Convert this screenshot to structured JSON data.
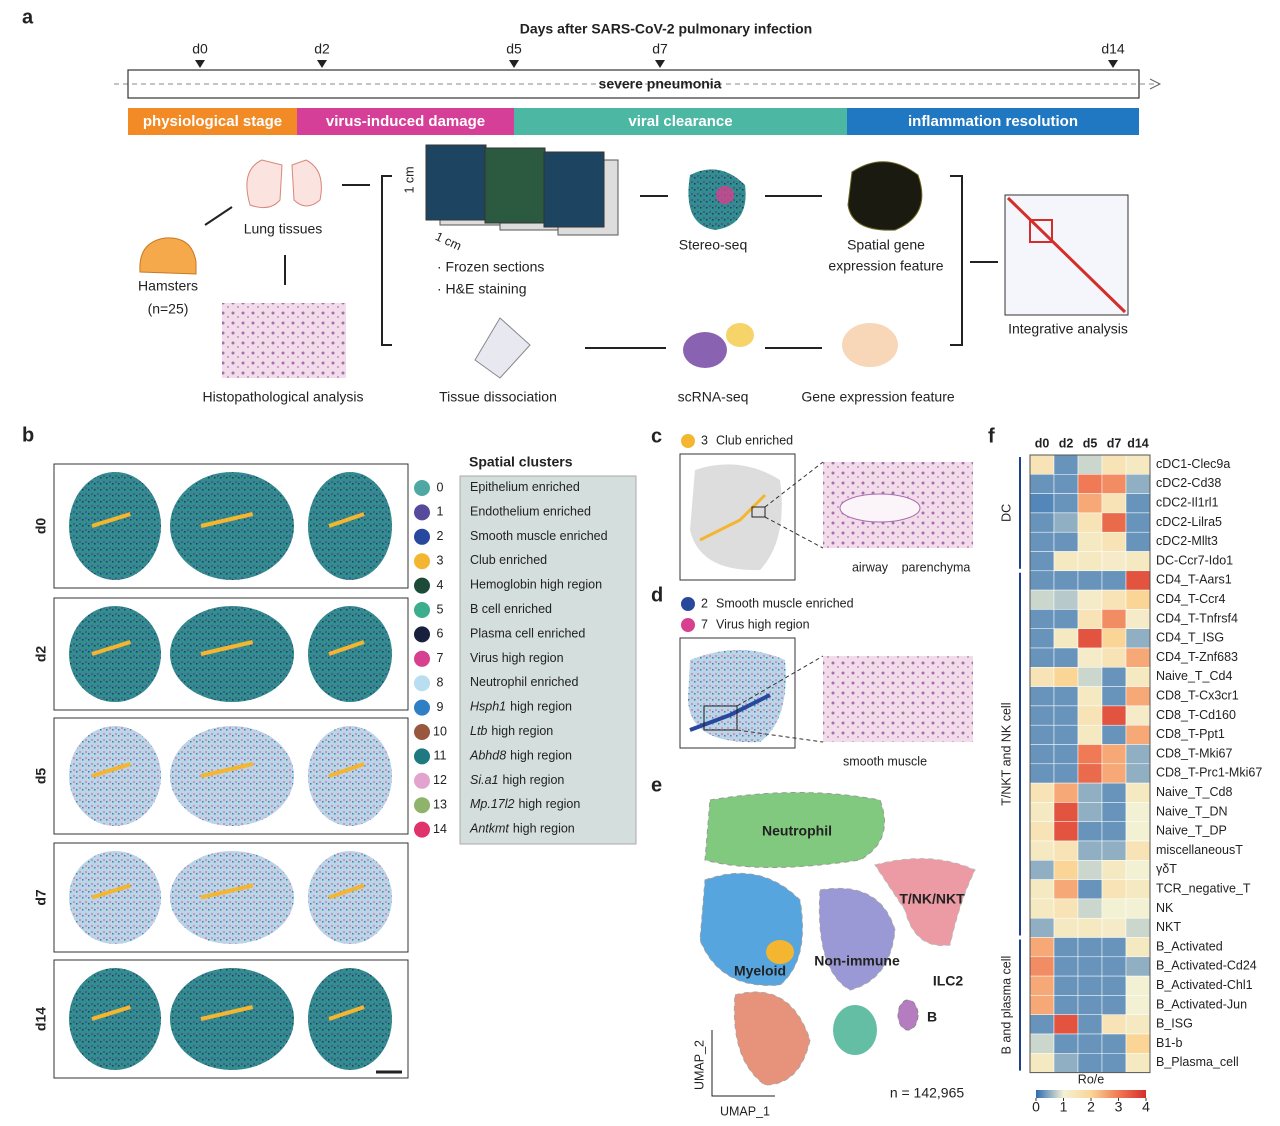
{
  "panels": [
    "a",
    "b",
    "c",
    "d",
    "e",
    "f"
  ],
  "timeline": {
    "title": "Days after SARS-CoV-2 pulmonary infection",
    "days": [
      "d0",
      "d2",
      "d5",
      "d7",
      "d14"
    ],
    "bar_label": "severe pneumonia",
    "stages": [
      {
        "label": "physiological stage",
        "color": "#f28a26"
      },
      {
        "label": "virus-induced damage",
        "color": "#d63f97"
      },
      {
        "label": "viral clearance",
        "color": "#4cb8a4"
      },
      {
        "label": "inflammation resolution",
        "color": "#1f78c1"
      }
    ]
  },
  "workflow": {
    "hamsters": "Hamsters",
    "hamster_n": "(n=25)",
    "lung": "Lung tissues",
    "histo": "Histopathological analysis",
    "scale_v": "1 cm",
    "scale_h": "1 cm",
    "frozen": "· Frozen sections",
    "he": "· H&E staining",
    "dissociation": "Tissue dissociation",
    "stereo": "Stereo-seq",
    "spatial_feature": [
      "Spatial gene",
      "expression feature"
    ],
    "scrna": "scRNA-seq",
    "gene_feature": "Gene expression feature",
    "integrative": "Integrative analysis"
  },
  "spatial": {
    "rows": [
      "d0",
      "d2",
      "d5",
      "d7",
      "d14"
    ],
    "legend_title": "Spatial clusters",
    "clusters": [
      {
        "id": "0",
        "label": "Epithelium enriched",
        "color": "#4fa9a2"
      },
      {
        "id": "1",
        "label": "Endothelium enriched",
        "color": "#574a9c"
      },
      {
        "id": "2",
        "label": "Smooth muscle enriched",
        "color": "#27489c"
      },
      {
        "id": "3",
        "label": "Club enriched",
        "color": "#f4b531"
      },
      {
        "id": "4",
        "label": "Hemoglobin high region",
        "color": "#1e4a38"
      },
      {
        "id": "5",
        "label": "B cell enriched",
        "color": "#3cae8d"
      },
      {
        "id": "6",
        "label": "Plasma cell enriched",
        "color": "#17213d"
      },
      {
        "id": "7",
        "label": "Virus high region",
        "color": "#d6408e"
      },
      {
        "id": "8",
        "label": "Neutrophil enriched",
        "color": "#b8def0"
      },
      {
        "id": "9",
        "gene": "Hsph1",
        "label": "high region",
        "color": "#2e7fc4"
      },
      {
        "id": "10",
        "gene": "Ltb",
        "label": "high region",
        "color": "#99573e"
      },
      {
        "id": "11",
        "gene": "Abhd8",
        "label": "high region",
        "color": "#1e7a80"
      },
      {
        "id": "12",
        "gene": "Si.a1",
        "label": "high region",
        "color": "#e3a3cf"
      },
      {
        "id": "13",
        "gene": "Mp.17l2",
        "label": "high region",
        "color": "#8db46a"
      },
      {
        "id": "14",
        "gene": "Antkmt",
        "label": "high region",
        "color": "#e0336b"
      }
    ]
  },
  "panel_c": {
    "legend": {
      "id": "3",
      "label": "Club enriched",
      "color": "#f4b531"
    },
    "labels": [
      "airway",
      "parenchyma"
    ]
  },
  "panel_d": {
    "legend": [
      {
        "id": "2",
        "label": "Smooth muscle enriched",
        "color": "#27489c"
      },
      {
        "id": "7",
        "label": "Virus high region",
        "color": "#d6408e"
      }
    ],
    "labels": [
      "smooth muscle"
    ]
  },
  "umap": {
    "clusters": [
      "Neutrophil",
      "T/NK/NKT",
      "Myeloid",
      "Non-immune",
      "ILC2",
      "B"
    ],
    "x_label": "UMAP_1",
    "y_label": "UMAP_2",
    "n": "n = 142,965"
  },
  "heatmap": {
    "columns": [
      "d0",
      "d2",
      "d5",
      "d7",
      "d14"
    ],
    "groups": [
      {
        "label": "DC",
        "rows": [
          {
            "name": "cDC1-Clec9a",
            "values": [
              1.5,
              0.3,
              0.8,
              1.5,
              1.3
            ]
          },
          {
            "name": "cDC2-Cd38",
            "values": [
              0.3,
              0.3,
              3.0,
              2.8,
              0.5
            ]
          },
          {
            "name": "cDC2-Il1rl1",
            "values": [
              0.2,
              0.3,
              2.5,
              1.5,
              0.3
            ]
          },
          {
            "name": "cDC2-Lilra5",
            "values": [
              0.3,
              0.5,
              1.5,
              3.2,
              0.3
            ]
          },
          {
            "name": "cDC2-Mllt3",
            "values": [
              0.3,
              0.3,
              1.3,
              1.5,
              0.3
            ]
          },
          {
            "name": "DC-Ccr7-Ido1",
            "values": [
              0.3,
              1.3,
              1.3,
              1.2,
              1.3
            ]
          }
        ]
      },
      {
        "label": "T/NKT and NK cell",
        "rows": [
          {
            "name": "CD4_T-Aars1",
            "values": [
              0.3,
              0.3,
              0.3,
              0.3,
              3.5
            ]
          },
          {
            "name": "CD4_T-Ccr4",
            "values": [
              0.8,
              0.7,
              1.2,
              1.5,
              2.0
            ]
          },
          {
            "name": "CD4_T-Tnfrsf4",
            "values": [
              0.3,
              0.3,
              1.5,
              2.8,
              1.2
            ]
          },
          {
            "name": "CD4_T_ISG",
            "values": [
              0.3,
              1.3,
              3.5,
              2.0,
              0.5
            ]
          },
          {
            "name": "CD4_T-Znf683",
            "values": [
              0.3,
              0.3,
              1.2,
              1.5,
              2.5
            ]
          },
          {
            "name": "Naive_T_Cd4",
            "values": [
              1.5,
              2.0,
              0.8,
              0.3,
              1.3
            ]
          },
          {
            "name": "CD8_T-Cx3cr1",
            "values": [
              0.3,
              0.3,
              1.3,
              0.3,
              2.5
            ]
          },
          {
            "name": "CD8_T-Cd160",
            "values": [
              0.3,
              0.3,
              1.5,
              3.5,
              1.2
            ]
          },
          {
            "name": "CD8_T-Ppt1",
            "values": [
              0.3,
              0.3,
              1.3,
              0.3,
              2.5
            ]
          },
          {
            "name": "CD8_T-Mki67",
            "values": [
              0.3,
              0.3,
              3.0,
              2.5,
              0.5
            ]
          },
          {
            "name": "CD8_T-Prc1-Mki67",
            "values": [
              0.3,
              0.3,
              3.2,
              2.5,
              0.5
            ]
          },
          {
            "name": "Naive_T_Cd8",
            "values": [
              1.5,
              2.5,
              0.5,
              0.3,
              1.3
            ]
          },
          {
            "name": "Naive_T_DN",
            "values": [
              1.3,
              3.5,
              0.5,
              0.3,
              1.0
            ]
          },
          {
            "name": "Naive_T_DP",
            "values": [
              1.5,
              3.5,
              0.3,
              0.3,
              1.0
            ]
          },
          {
            "name": "miscellaneousT",
            "values": [
              1.3,
              1.5,
              0.5,
              0.5,
              1.5
            ]
          },
          {
            "name": "γδT",
            "values": [
              0.5,
              2.0,
              0.8,
              1.3,
              1.0
            ]
          },
          {
            "name": "TCR_negative_T",
            "values": [
              1.3,
              2.5,
              0.3,
              1.5,
              1.3
            ]
          },
          {
            "name": "NK",
            "values": [
              1.3,
              1.5,
              0.8,
              1.0,
              1.0
            ]
          },
          {
            "name": "NKT",
            "values": [
              0.5,
              1.3,
              1.3,
              1.2,
              0.8
            ]
          }
        ]
      },
      {
        "label": "B and plasma cell",
        "rows": [
          {
            "name": "B_Activated",
            "values": [
              2.5,
              0.3,
              0.3,
              0.3,
              1.3
            ]
          },
          {
            "name": "B_Activated-Cd24",
            "values": [
              2.8,
              0.3,
              0.3,
              0.3,
              0.5
            ]
          },
          {
            "name": "B_Activated-Chl1",
            "values": [
              2.5,
              0.3,
              0.3,
              0.3,
              1.0
            ]
          },
          {
            "name": "B_Activated-Jun",
            "values": [
              2.5,
              0.3,
              0.3,
              0.3,
              1.0
            ]
          },
          {
            "name": "B_ISG",
            "values": [
              0.3,
              3.5,
              0.3,
              1.5,
              1.3
            ]
          },
          {
            "name": "B1-b",
            "values": [
              0.8,
              0.3,
              0.3,
              0.3,
              2.0
            ]
          },
          {
            "name": "B_Plasma_cell",
            "values": [
              1.3,
              0.5,
              0.3,
              0.3,
              1.3
            ]
          }
        ]
      }
    ],
    "colorbar_label": "Ro/e",
    "clim": [
      0,
      4
    ],
    "cticks": [
      0,
      1,
      2,
      3,
      4
    ],
    "colormap": [
      "#2c6cb2",
      "#f3f1d4",
      "#fbd596",
      "#f07a55",
      "#d42e2a"
    ]
  }
}
